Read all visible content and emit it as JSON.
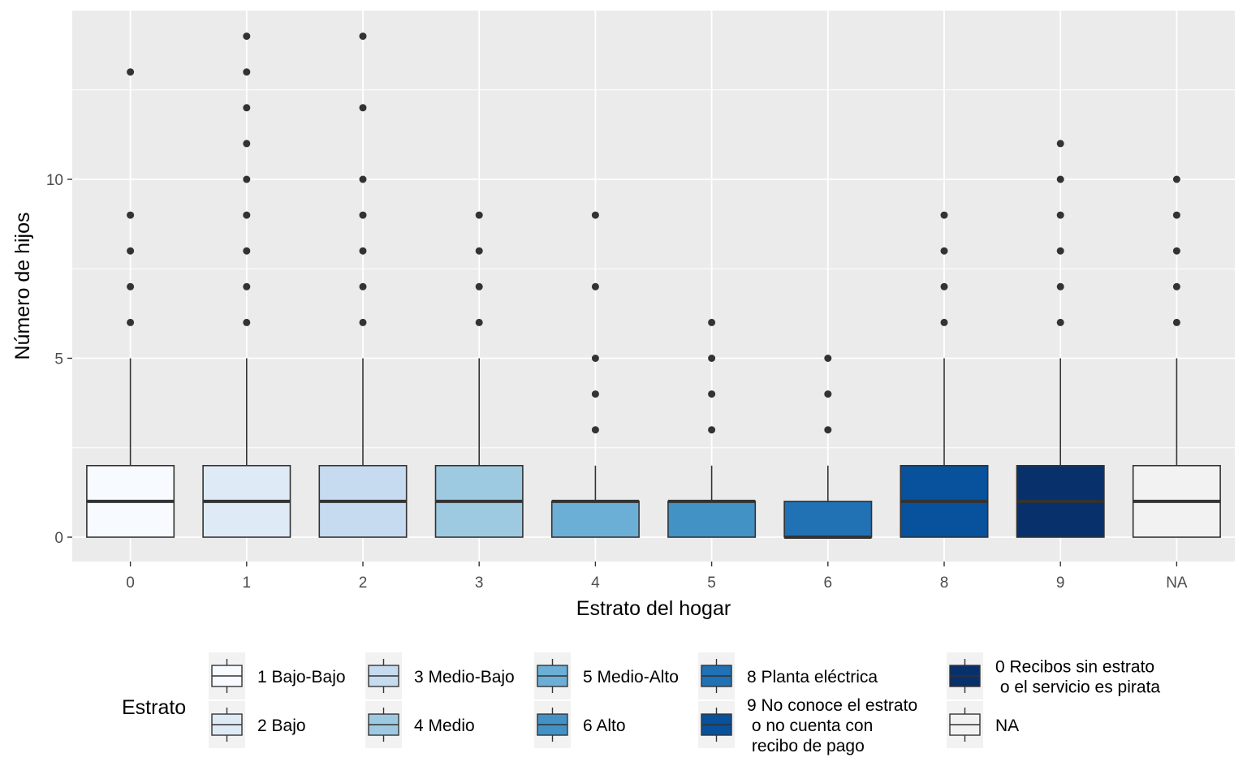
{
  "chart_data": {
    "type": "boxplot",
    "title": "",
    "xlabel": "Estrato del hogar",
    "ylabel": "Número de hijos",
    "ylim": [
      -0.7,
      14.7
    ],
    "yticks": [
      0,
      5,
      10
    ],
    "grid": true,
    "panel_background": "#ebebeb",
    "categories": [
      "0",
      "1",
      "2",
      "3",
      "4",
      "5",
      "6",
      "8",
      "9",
      "NA"
    ],
    "boxes": [
      {
        "category": "0",
        "min": 0,
        "q1": 0,
        "median": 1,
        "q3": 2,
        "max": 5,
        "outliers": [
          6,
          7,
          8,
          9,
          13
        ],
        "fill": "#f7fbff"
      },
      {
        "category": "1",
        "min": 0,
        "q1": 0,
        "median": 1,
        "q3": 2,
        "max": 5,
        "outliers": [
          6,
          7,
          8,
          9,
          10,
          11,
          12,
          13,
          14
        ],
        "fill": "#deebf7"
      },
      {
        "category": "2",
        "min": 0,
        "q1": 0,
        "median": 1,
        "q3": 2,
        "max": 5,
        "outliers": [
          6,
          7,
          8,
          9,
          10,
          12,
          14
        ],
        "fill": "#c6dbef"
      },
      {
        "category": "3",
        "min": 0,
        "q1": 0,
        "median": 1,
        "q3": 2,
        "max": 5,
        "outliers": [
          6,
          7,
          8,
          9
        ],
        "fill": "#9ecae1"
      },
      {
        "category": "4",
        "min": 0,
        "q1": 0,
        "median": 1,
        "q3": 1,
        "max": 2,
        "outliers": [
          3,
          4,
          5,
          7,
          9
        ],
        "fill": "#6baed6"
      },
      {
        "category": "5",
        "min": 0,
        "q1": 0,
        "median": 1,
        "q3": 1,
        "max": 2,
        "outliers": [
          3,
          4,
          5,
          6
        ],
        "fill": "#4292c6"
      },
      {
        "category": "6",
        "min": 0,
        "q1": 0,
        "median": 0,
        "q3": 1,
        "max": 2,
        "outliers": [
          3,
          4,
          5
        ],
        "fill": "#2171b5"
      },
      {
        "category": "8",
        "min": 0,
        "q1": 0,
        "median": 1,
        "q3": 2,
        "max": 5,
        "outliers": [
          6,
          7,
          8,
          9
        ],
        "fill": "#08519c"
      },
      {
        "category": "9",
        "min": 0,
        "q1": 0,
        "median": 1,
        "q3": 2,
        "max": 5,
        "outliers": [
          6,
          7,
          8,
          9,
          10,
          11
        ],
        "fill": "#08306b"
      },
      {
        "category": "NA",
        "min": 0,
        "q1": 0,
        "median": 1,
        "q3": 2,
        "max": 5,
        "outliers": [
          6,
          7,
          8,
          9,
          10
        ],
        "fill": "#f2f2f2"
      }
    ],
    "legend": {
      "title": "Estrato",
      "position": "bottom",
      "entries": [
        {
          "lines": [
            "1 Bajo-Bajo"
          ],
          "fill": "#f7fbff"
        },
        {
          "lines": [
            "2 Bajo"
          ],
          "fill": "#deebf7"
        },
        {
          "lines": [
            "3 Medio-Bajo"
          ],
          "fill": "#c6dbef"
        },
        {
          "lines": [
            "4 Medio"
          ],
          "fill": "#9ecae1"
        },
        {
          "lines": [
            "5 Medio-Alto"
          ],
          "fill": "#6baed6"
        },
        {
          "lines": [
            "6 Alto"
          ],
          "fill": "#4292c6"
        },
        {
          "lines": [
            "8 Planta eléctrica"
          ],
          "fill": "#2171b5"
        },
        {
          "lines": [
            "9 No conoce el estrato",
            "   o no cuenta con",
            "   recibo de pago"
          ],
          "fill": "#08519c"
        },
        {
          "lines": [
            "0 Recibos sin estrato",
            "   o el servicio es pirata"
          ],
          "fill": "#08306b"
        },
        {
          "lines": [
            "NA"
          ],
          "fill": "#f2f2f2"
        }
      ]
    }
  }
}
